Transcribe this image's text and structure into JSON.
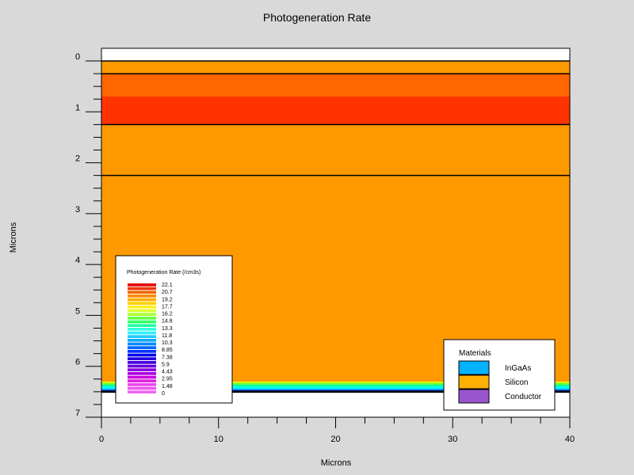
{
  "chart_data": {
    "type": "heatmap",
    "title": "Photogeneration Rate",
    "xlabel": "Microns",
    "ylabel": "Microns",
    "xlim": [
      0,
      40
    ],
    "ylim": [
      0,
      7
    ],
    "y_inverted": true,
    "x_ticks": [
      "0",
      "10",
      "20",
      "30",
      "40"
    ],
    "y_ticks": [
      "0",
      "1",
      "2",
      "3",
      "4",
      "5",
      "6",
      "7"
    ],
    "regions": [
      {
        "y0": 0.0,
        "y1": 0.25,
        "color": "#ff9900"
      },
      {
        "y0": 0.25,
        "y1": 0.7,
        "color": "#ff6600"
      },
      {
        "y0": 0.7,
        "y1": 1.25,
        "color": "#ff3300"
      },
      {
        "y0": 1.25,
        "y1": 6.3,
        "color": "#ff9900"
      },
      {
        "y0": 6.3,
        "y1": 6.33,
        "color": "#d4ff00"
      },
      {
        "y0": 6.33,
        "y1": 6.36,
        "color": "#66ff33"
      },
      {
        "y0": 6.36,
        "y1": 6.4,
        "color": "#00ff99"
      },
      {
        "y0": 6.4,
        "y1": 6.44,
        "color": "#00ffff"
      },
      {
        "y0": 6.44,
        "y1": 6.47,
        "color": "#0099ff"
      },
      {
        "y0": 6.47,
        "y1": 6.5,
        "color": "#0000cc"
      }
    ],
    "layer_boundaries": [
      0.0,
      0.25,
      1.25,
      2.25,
      6.5
    ],
    "colorbar": {
      "title": "Photogeneration Rate (/cm3s)",
      "labels": [
        "22.1",
        "20.7",
        "19.2",
        "17.7",
        "16.2",
        "14.8",
        "13.3",
        "11.8",
        "10.3",
        "8.85",
        "7.38",
        "5.9",
        "4.43",
        "2.95",
        "1.48",
        "0"
      ],
      "colors": [
        "#e60000",
        "#ee3300",
        "#f26600",
        "#f78a00",
        "#fbae00",
        "#ffd200",
        "#ffee22",
        "#e0ff33",
        "#aaff33",
        "#66ff44",
        "#33ff66",
        "#22ffaa",
        "#33ffdd",
        "#33eeff",
        "#22ccff",
        "#11aaff",
        "#0088ff",
        "#0066ff",
        "#0033ff",
        "#0000ee",
        "#2200dd",
        "#4400dd",
        "#6600dd",
        "#8800dd",
        "#aa00dd",
        "#cc00dd",
        "#dd22dd",
        "#ee44ee",
        "#ee55ee",
        "#ee66ee"
      ]
    },
    "materials_legend": {
      "title": "Materials",
      "entries": [
        {
          "label": "InGaAs",
          "color": "#00b2ff"
        },
        {
          "label": "Silicon",
          "color": "#ffb000"
        },
        {
          "label": "Conductor",
          "color": "#9955cc"
        }
      ]
    },
    "background_color": "#d9d9d9"
  }
}
